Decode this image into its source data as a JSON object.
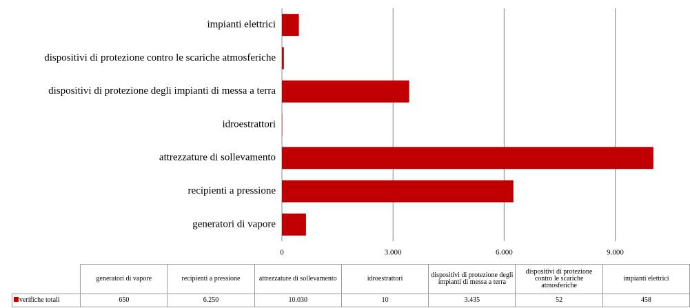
{
  "chart_data": {
    "type": "barh",
    "categories": [
      "generatori di vapore",
      "recipienti a pressione",
      "attrezzature di sollevamento",
      "idroestrattori",
      "dispositivi di protezione degli impianti di messa a terra",
      "dispositivi di protezione contro le scariche atmosferiche",
      "impianti elettrici"
    ],
    "series": [
      {
        "name": "verifiche totali",
        "color": "#c00000",
        "values": [
          650,
          6250,
          10030,
          10,
          3435,
          52,
          458
        ],
        "value_labels": [
          "650",
          "6.250",
          "10.030",
          "10",
          "3.435",
          "52",
          "458"
        ]
      }
    ],
    "xlim": [
      0,
      11000
    ],
    "xticks": [
      0,
      {
        "value": 3000,
        "label": "3.000"
      },
      {
        "value": 6000,
        "label": "6.000"
      },
      {
        "value": 9000,
        "label": "9.000"
      }
    ],
    "grid": true
  }
}
